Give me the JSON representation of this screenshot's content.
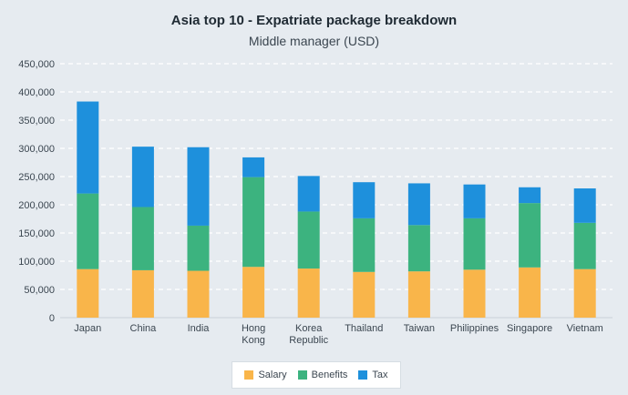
{
  "colors": {
    "background": "#e6ebf0",
    "salary": "#f9b54a",
    "benefits": "#3cb37f",
    "tax": "#1e90dc",
    "grid": "#ffffff",
    "text": "#3b4650"
  },
  "chart_data": {
    "type": "bar",
    "stacked": true,
    "title": "Asia top 10 - Expatriate package breakdown",
    "subtitle": "Middle manager (USD)",
    "categories": [
      "Japan",
      "China",
      "India",
      "Hong\nKong",
      "Korea\nRepublic",
      "Thailand",
      "Taiwan",
      "Philippines",
      "Singapore",
      "Vietnam"
    ],
    "series": [
      {
        "name": "Salary",
        "values": [
          86000,
          84000,
          83000,
          90000,
          87000,
          81000,
          82000,
          85000,
          89000,
          86000
        ]
      },
      {
        "name": "Benefits",
        "values": [
          134000,
          112000,
          80000,
          159000,
          101000,
          95000,
          82000,
          91000,
          114000,
          82000
        ]
      },
      {
        "name": "Tax",
        "values": [
          163000,
          107000,
          139000,
          35000,
          63000,
          64000,
          74000,
          60000,
          28000,
          61000
        ]
      }
    ],
    "ylim": [
      0,
      450000
    ],
    "yticks": [
      0,
      50000,
      100000,
      150000,
      200000,
      250000,
      300000,
      350000,
      400000,
      450000
    ],
    "ytick_labels": [
      "0",
      "50,000",
      "100,000",
      "150,000",
      "200,000",
      "250,000",
      "300,000",
      "350,000",
      "400,000",
      "450,000"
    ],
    "grid": true,
    "legend_position": "bottom-center"
  }
}
